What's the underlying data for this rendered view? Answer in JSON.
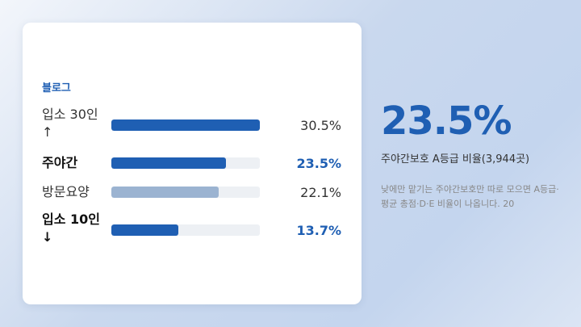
{
  "card": {
    "label": "블로그"
  },
  "highlight": {
    "value": "23.5%",
    "subtitle": "주야간보호 A등급 비율(3,944곳)",
    "note": "낮에만 맡기는 주야간보호만 따로 모으면 A등급·평균 총점·D·E 비율이 나옵니다. 20"
  },
  "colors": {
    "primary": "#1f5fb3",
    "muted": "#9bb3d1",
    "track": "#edf0f4"
  },
  "chart_data": {
    "type": "bar",
    "orientation": "horizontal",
    "categories": [
      "입소 30인↑",
      "주야간",
      "방문요양",
      "입소 10인↓"
    ],
    "values": [
      30.5,
      23.5,
      22.1,
      13.7
    ],
    "value_labels": [
      "30.5%",
      "23.5%",
      "22.1%",
      "13.7%"
    ],
    "highlighted": [
      false,
      true,
      false,
      true
    ],
    "xlim": [
      0,
      30.5
    ]
  }
}
